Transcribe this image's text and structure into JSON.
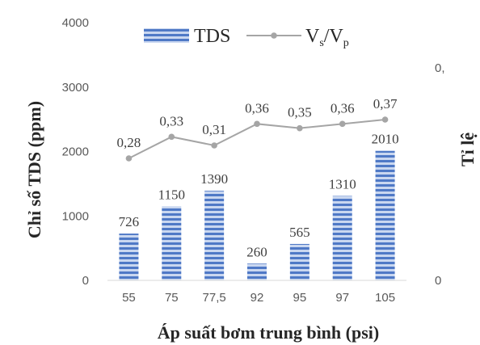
{
  "chart_data": {
    "type": "bar",
    "categories": [
      "55",
      "75",
      "77,5",
      "92",
      "95",
      "97",
      "105"
    ],
    "series": [
      {
        "name": "TDS",
        "type": "bar",
        "axis": "left",
        "values": [
          726,
          1150,
          1390,
          260,
          565,
          1310,
          2010
        ],
        "labels": [
          "726",
          "1150",
          "1390",
          "260",
          "565",
          "1310",
          "2010"
        ],
        "color": "#4472c4"
      },
      {
        "name": "Vs/Vp",
        "type": "line",
        "axis": "right",
        "values": [
          0.28,
          0.33,
          0.31,
          0.36,
          0.35,
          0.36,
          0.37
        ],
        "labels": [
          "0,28",
          "0,33",
          "0,31",
          "0,36",
          "0,35",
          "0,36",
          "0,37"
        ],
        "color": "#a5a5a5"
      }
    ],
    "xlabel": "Áp suất bơm trung bình (psi)",
    "ylabel": "Chỉ số TDS (ppm)",
    "y2label": "Tỉ lệ",
    "ylim": [
      0,
      4000
    ],
    "yticks": [
      "0",
      "1000",
      "2000",
      "3000",
      "4000"
    ],
    "y2lim": [
      0,
      0.5
    ],
    "y2ticks": [
      "0",
      "0,"
    ],
    "grid": false,
    "legend": "top"
  }
}
